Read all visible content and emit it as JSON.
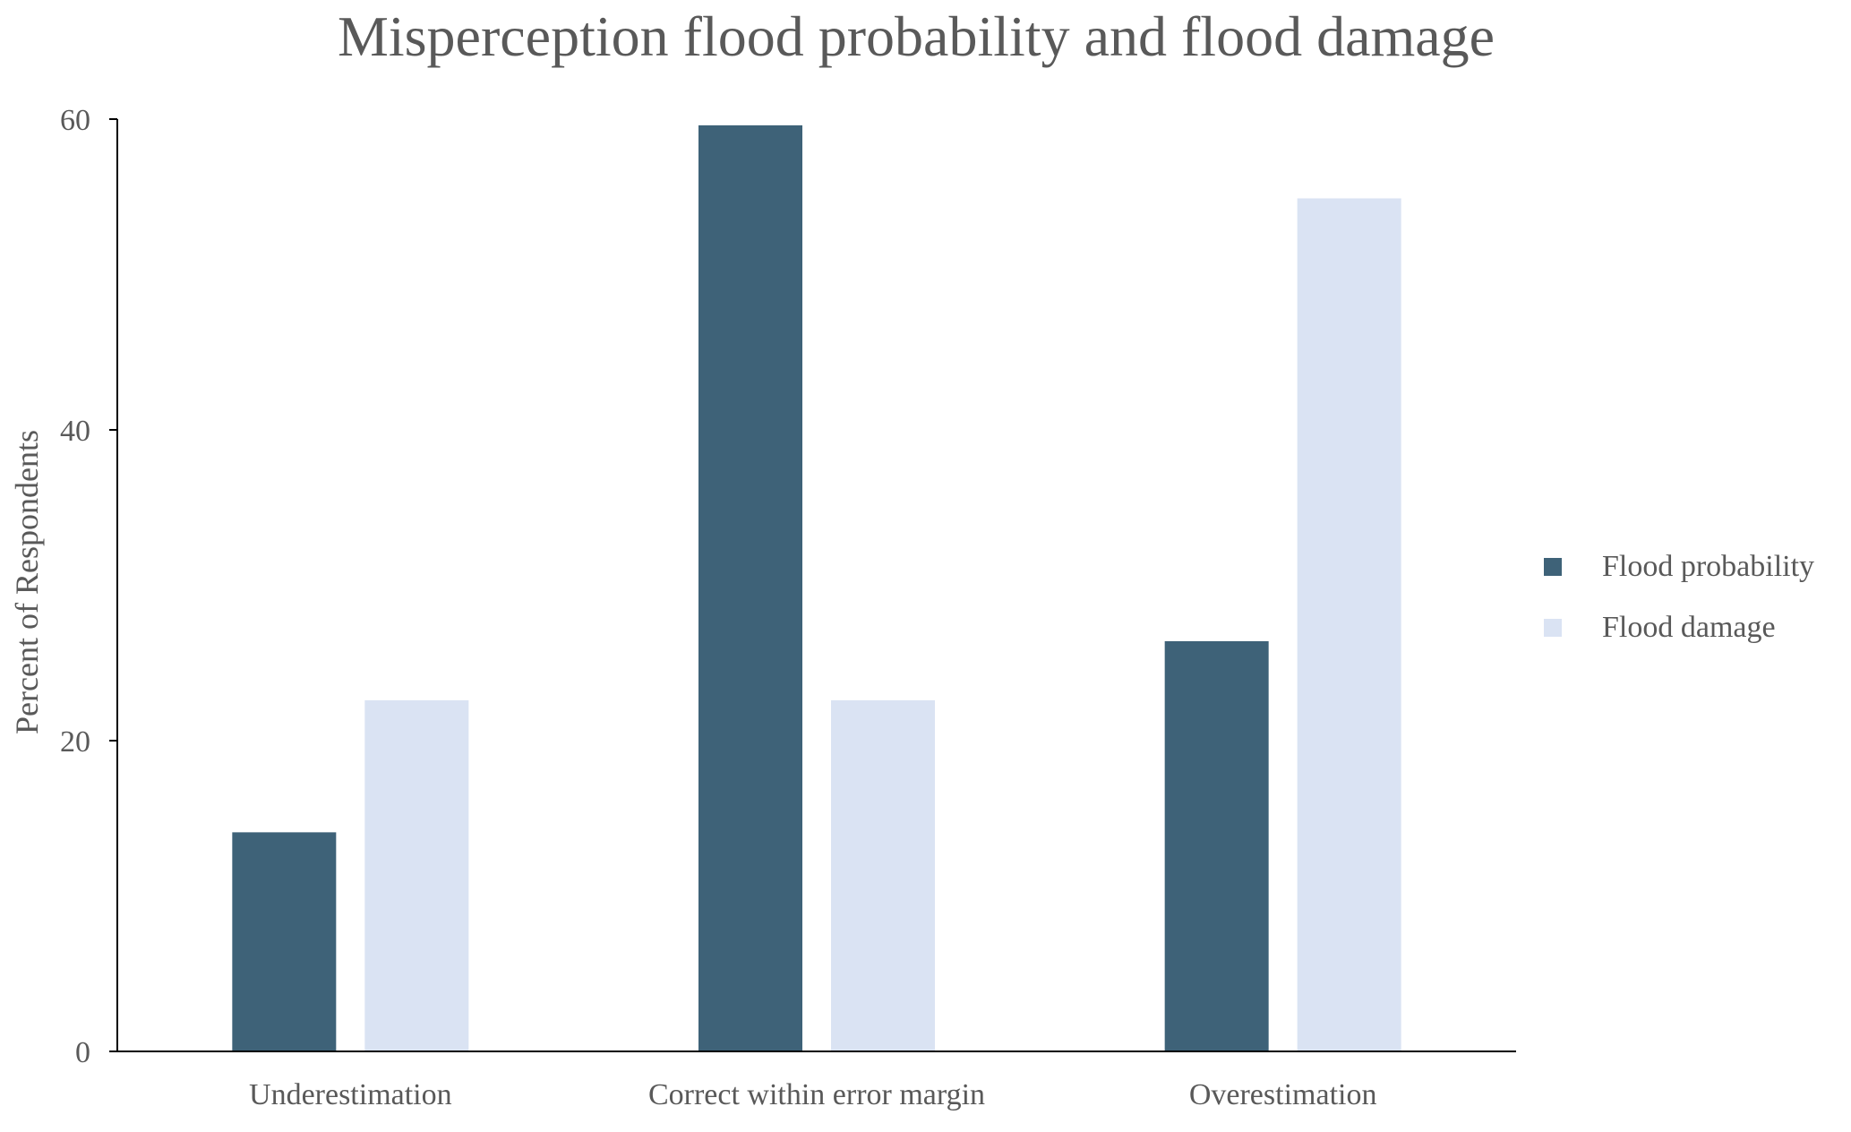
{
  "chart_data": {
    "type": "bar",
    "title": "Misperception flood probability and flood damage",
    "xlabel": "",
    "ylabel": "Percent of Respondents",
    "categories": [
      "Underestimation",
      "Correct within error margin",
      "Overestimation"
    ],
    "series": [
      {
        "name": "Flood probability",
        "color": "#3e6278",
        "values": [
          14.1,
          59.6,
          26.4
        ]
      },
      {
        "name": "Flood damage",
        "color": "#dae3f3",
        "values": [
          22.6,
          22.6,
          54.9
        ]
      }
    ],
    "ylim": [
      0,
      60
    ],
    "yticks": [
      "0",
      "20",
      "40",
      "60"
    ],
    "grid": false,
    "legend_position": "right"
  }
}
